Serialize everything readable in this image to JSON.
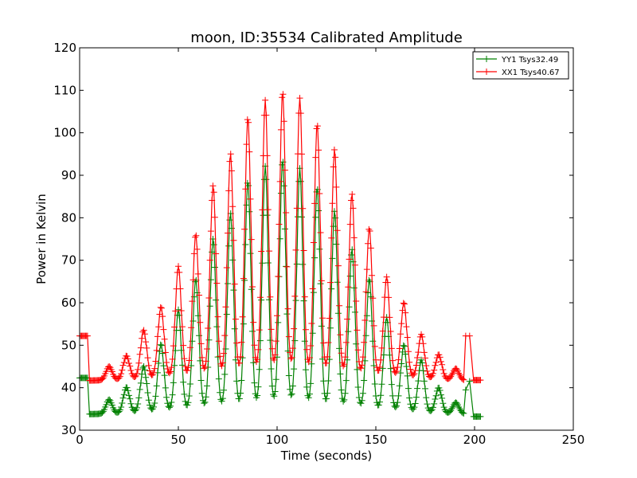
{
  "chart_data": {
    "type": "line",
    "title": "moon, ID:35534 Calibrated Amplitude",
    "xlabel": "Time (seconds)",
    "ylabel": "Power in Kelvin",
    "xlim": [
      0,
      250
    ],
    "ylim": [
      30,
      120
    ],
    "xticks": [
      "0",
      "50",
      "100",
      "150",
      "200",
      "250"
    ],
    "yticks": [
      "30",
      "40",
      "50",
      "60",
      "70",
      "80",
      "90",
      "100",
      "110",
      "120"
    ],
    "grid": false,
    "legend_position": "top-right",
    "series": [
      {
        "name": "YY1 Tsys32.49",
        "color": "#008000",
        "marker": "+",
        "start": {
          "x_from": 0,
          "x_to": 4,
          "level": 42.3
        },
        "end": {
          "x_from": 199.5,
          "x_to": 203,
          "level": 33.2
        },
        "baseline_from": 33.8,
        "baseline_to": 33.8,
        "peak_baseline_bump": 3.5,
        "peak_x": [
          14.9,
          23.7,
          32.4,
          41.2,
          50.0,
          58.8,
          67.6,
          76.4,
          85.2,
          94.0,
          102.8,
          111.5,
          120.3,
          129.1,
          137.9,
          146.7,
          155.5,
          164.2,
          173.0,
          181.8,
          190.5
        ],
        "peak_y": [
          37.2,
          40.1,
          45.0,
          50.2,
          58.3,
          65.5,
          75.0,
          81.0,
          88.5,
          92.0,
          93.5,
          91.5,
          87.0,
          81.5,
          72.5,
          65.5,
          56.5,
          50.0,
          46.5,
          40.0,
          36.5
        ],
        "marker_pair": {
          "x": [
            195.5,
            197.5
          ],
          "y": [
            39.5,
            41.5
          ]
        }
      },
      {
        "name": "XX1 Tsys40.67",
        "color": "#ff0000",
        "marker": "+",
        "start": {
          "x_from": 0,
          "x_to": 4,
          "level": 52.2
        },
        "end": {
          "x_from": 199.5,
          "x_to": 203,
          "level": 41.8
        },
        "baseline_from": 41.7,
        "baseline_to": 41.7,
        "peak_baseline_bump": 4.0,
        "peak_x": [
          14.9,
          23.7,
          32.4,
          41.2,
          50.0,
          58.8,
          67.6,
          76.4,
          85.2,
          94.0,
          102.8,
          111.5,
          120.3,
          129.1,
          137.9,
          146.7,
          155.5,
          164.2,
          173.0,
          181.8,
          190.5
        ],
        "peak_y": [
          45.0,
          47.5,
          53.5,
          59.0,
          68.5,
          76.0,
          87.5,
          95.0,
          103.5,
          107.5,
          109.5,
          108.0,
          102.0,
          96.0,
          85.5,
          77.5,
          66.0,
          60.0,
          52.5,
          47.8,
          44.5
        ],
        "marker_pair": {
          "x": [
            195.5,
            197.5
          ],
          "y": [
            52.2,
            52.2
          ]
        }
      }
    ]
  }
}
